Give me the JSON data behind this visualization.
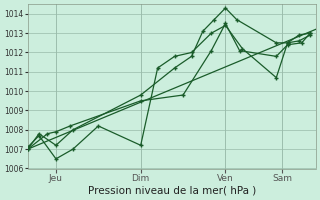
{
  "background_color": "#cceedd",
  "grid_color": "#99bbaa",
  "line_color": "#1a5c2a",
  "xlabel": "Pression niveau de la mer( hPa )",
  "ylim": [
    1006,
    1014.5
  ],
  "yticks": [
    1006,
    1007,
    1008,
    1009,
    1010,
    1011,
    1012,
    1013,
    1014
  ],
  "xtick_labels": [
    "Jeu",
    "Dim",
    "Ven",
    "Sam"
  ],
  "xtick_positions": [
    1,
    4,
    7,
    9
  ],
  "xlim": [
    0,
    10.2
  ],
  "trend_x": [
    0.0,
    10.2
  ],
  "trend_y": [
    1007.0,
    1013.2
  ],
  "series1_x": [
    0.0,
    0.4,
    1.0,
    1.6,
    4.0,
    5.2,
    5.8,
    6.2,
    6.6,
    7.0,
    7.4,
    8.8,
    9.2,
    9.6,
    10.0
  ],
  "series1_y": [
    1007.0,
    1007.8,
    1007.2,
    1008.0,
    1009.8,
    1011.2,
    1011.8,
    1013.1,
    1013.7,
    1014.3,
    1013.7,
    1012.5,
    1012.5,
    1012.9,
    1013.0
  ],
  "series2_x": [
    0.0,
    0.4,
    1.0,
    1.6,
    2.5,
    4.0,
    4.6,
    5.2,
    5.8,
    6.5,
    7.0,
    7.6,
    8.8,
    9.2,
    9.6,
    10.0
  ],
  "series2_y": [
    1007.1,
    1007.7,
    1006.5,
    1007.0,
    1008.2,
    1007.2,
    1011.2,
    1011.8,
    1012.0,
    1013.0,
    1013.4,
    1012.2,
    1010.7,
    1012.5,
    1012.6,
    1012.9
  ],
  "series3_x": [
    0.0,
    0.7,
    1.0,
    1.5,
    4.0,
    5.5,
    6.5,
    7.0,
    7.5,
    8.8,
    9.2,
    9.7,
    10.0
  ],
  "series3_y": [
    1007.0,
    1007.8,
    1007.9,
    1008.2,
    1009.5,
    1009.8,
    1012.1,
    1013.5,
    1012.1,
    1011.8,
    1012.4,
    1012.5,
    1013.0
  ],
  "marker_size": 2.5,
  "line_width": 0.9
}
